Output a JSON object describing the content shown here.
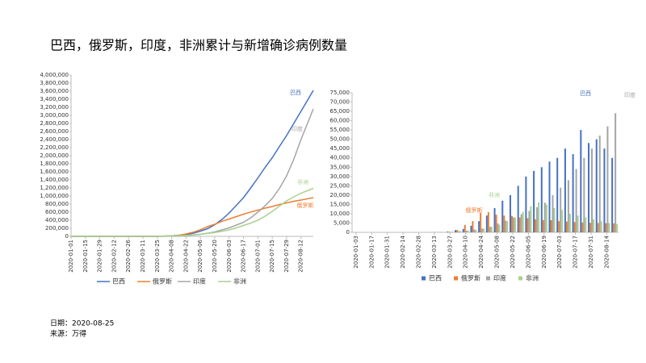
{
  "title": "巴西，俄罗斯，印度，非洲累计与新增确诊病例数量",
  "footer": {
    "date": "日期：2020-08-25",
    "source": "来源：万得"
  },
  "chart_data": [
    {
      "type": "line",
      "x": [
        "2020-01-01",
        "2020-01-08",
        "2020-01-15",
        "2020-01-22",
        "2020-01-29",
        "2020-02-05",
        "2020-02-12",
        "2020-02-19",
        "2020-02-26",
        "2020-03-04",
        "2020-03-11",
        "2020-03-18",
        "2020-03-25",
        "2020-04-01",
        "2020-04-08",
        "2020-04-15",
        "2020-04-22",
        "2020-04-29",
        "2020-05-06",
        "2020-05-13",
        "2020-05-20",
        "2020-05-27",
        "2020-06-03",
        "2020-06-10",
        "2020-06-17",
        "2020-06-24",
        "2020-07-01",
        "2020-07-08",
        "2020-07-15",
        "2020-07-22",
        "2020-07-29",
        "2020-08-05",
        "2020-08-12",
        "2020-08-19",
        "2020-08-24"
      ],
      "series": [
        {
          "name": "巴西",
          "color": "#4472c4",
          "values": [
            0,
            0,
            0,
            0,
            0,
            0,
            0,
            0,
            0,
            3,
            50,
            400,
            2500,
            7000,
            16000,
            28000,
            45000,
            78000,
            130000,
            190000,
            290000,
            420000,
            580000,
            770000,
            960000,
            1200000,
            1450000,
            1710000,
            1950000,
            2230000,
            2500000,
            2800000,
            3100000,
            3400000,
            3620000
          ]
        },
        {
          "name": "俄罗斯",
          "color": "#ed7d31",
          "values": [
            0,
            0,
            0,
            0,
            0,
            0,
            0,
            0,
            0,
            0,
            30,
            150,
            650,
            3000,
            10000,
            27000,
            60000,
            105000,
            165000,
            240000,
            300000,
            375000,
            430000,
            490000,
            550000,
            605000,
            650000,
            700000,
            740000,
            790000,
            830000,
            870000,
            900000,
            935000,
            960000
          ]
        },
        {
          "name": "印度",
          "color": "#a5a5a5",
          "values": [
            0,
            0,
            0,
            0,
            3,
            3,
            3,
            3,
            3,
            30,
            60,
            170,
            600,
            1800,
            5700,
            12000,
            20000,
            31000,
            50000,
            78000,
            110000,
            160000,
            210000,
            280000,
            350000,
            460000,
            600000,
            760000,
            940000,
            1190000,
            1500000,
            1910000,
            2400000,
            2840000,
            3160000
          ]
        },
        {
          "name": "非洲",
          "color": "#a9d18e",
          "values": [
            0,
            0,
            0,
            0,
            0,
            0,
            0,
            0,
            1,
            5,
            100,
            600,
            2500,
            6000,
            12000,
            18000,
            25000,
            38000,
            55000,
            72000,
            95000,
            125000,
            160000,
            210000,
            270000,
            330000,
            400000,
            500000,
            620000,
            750000,
            880000,
            980000,
            1070000,
            1140000,
            1190000
          ]
        }
      ],
      "ylim": [
        0,
        4000000
      ],
      "yticks": [
        0,
        {
          "value": 200000,
          "label": "200,000"
        },
        {
          "value": 400000,
          "label": "400,000"
        },
        {
          "value": 600000,
          "label": "600,000"
        },
        {
          "value": 800000,
          "label": "800,000"
        },
        {
          "value": 1000000,
          "label": "1,000,000"
        },
        {
          "value": 1200000,
          "label": "1,200,000"
        },
        {
          "value": 1400000,
          "label": "1,400,000"
        },
        {
          "value": 1600000,
          "label": "1,600,000"
        },
        {
          "value": 1800000,
          "label": "1,800,000"
        },
        {
          "value": 2000000,
          "label": "2,000,000"
        },
        {
          "value": 2200000,
          "label": "2,200,000"
        },
        {
          "value": 2400000,
          "label": "2,400,000"
        },
        {
          "value": 2600000,
          "label": "2,600,000"
        },
        {
          "value": 2800000,
          "label": "2,800,000"
        },
        {
          "value": 3000000,
          "label": "3,000,000"
        },
        {
          "value": 3200000,
          "label": "3,200,000"
        },
        {
          "value": 3400000,
          "label": "3,400,000"
        },
        {
          "value": 3600000,
          "label": "3,600,000"
        },
        {
          "value": 3800000,
          "label": "3,800,000"
        },
        {
          "value": 4000000,
          "label": "4,000,000"
        }
      ],
      "xticks": [
        "2020-01-01",
        "2020-01-15",
        "2020-01-29",
        "2020-02-12",
        "2020-02-26",
        "2020-03-11",
        "2020-03-25",
        "2020-04-08",
        "2020-04-22",
        "2020-05-06",
        "2020-05-20",
        "2020-06-03",
        "2020-06-17",
        "2020-07-01",
        "2020-07-15",
        "2020-07-29",
        "2020-08-12"
      ]
    },
    {
      "type": "bar",
      "x": [
        "2020-01-03",
        "2020-01-10",
        "2020-01-17",
        "2020-01-24",
        "2020-01-31",
        "2020-02-07",
        "2020-02-14",
        "2020-02-21",
        "2020-02-28",
        "2020-03-06",
        "2020-03-13",
        "2020-03-20",
        "2020-03-27",
        "2020-04-03",
        "2020-04-10",
        "2020-04-17",
        "2020-04-24",
        "2020-05-01",
        "2020-05-08",
        "2020-05-15",
        "2020-05-22",
        "2020-05-29",
        "2020-06-05",
        "2020-06-12",
        "2020-06-19",
        "2020-06-26",
        "2020-07-03",
        "2020-07-10",
        "2020-07-17",
        "2020-07-24",
        "2020-07-31",
        "2020-08-07",
        "2020-08-14",
        "2020-08-21"
      ],
      "series": [
        {
          "name": "巴西",
          "color": "#4472c4",
          "values": [
            0,
            0,
            0,
            0,
            0,
            0,
            0,
            0,
            0,
            0,
            20,
            100,
            400,
            1200,
            1800,
            3500,
            6000,
            9000,
            13000,
            17000,
            20000,
            25000,
            30000,
            33000,
            35000,
            38000,
            40000,
            45000,
            42000,
            55000,
            48000,
            50000,
            45000,
            40000
          ]
        },
        {
          "name": "俄罗斯",
          "color": "#ed7d31",
          "values": [
            0,
            0,
            0,
            0,
            0,
            0,
            0,
            0,
            0,
            0,
            10,
            60,
            300,
            1200,
            4000,
            6000,
            10500,
            10800,
            9500,
            9000,
            8800,
            8000,
            7600,
            7000,
            6600,
            6500,
            6000,
            5800,
            5500,
            5300,
            5100,
            5000,
            4900,
            4800
          ]
        },
        {
          "name": "印度",
          "color": "#a5a5a5",
          "values": [
            0,
            0,
            0,
            0,
            0,
            0,
            0,
            0,
            0,
            0,
            10,
            50,
            150,
            600,
            900,
            1500,
            2000,
            3000,
            4800,
            6300,
            8000,
            9800,
            11500,
            13500,
            16000,
            20000,
            24000,
            28000,
            34000,
            40000,
            45000,
            52000,
            57000,
            64000
          ]
        },
        {
          "name": "非洲",
          "color": "#a9d18e",
          "values": [
            0,
            0,
            0,
            0,
            0,
            0,
            0,
            0,
            0,
            0,
            20,
            120,
            400,
            700,
            1000,
            1300,
            2000,
            3000,
            4000,
            6000,
            8000,
            11000,
            14000,
            16000,
            15000,
            13000,
            12000,
            10000,
            9000,
            8000,
            7000,
            6000,
            5000,
            4500
          ]
        }
      ],
      "ylim": [
        0,
        75000
      ],
      "yticks": [
        0,
        {
          "value": 5000,
          "label": "5,000"
        },
        {
          "value": 10000,
          "label": "10,000"
        },
        {
          "value": 15000,
          "label": "15,000"
        },
        {
          "value": 20000,
          "label": "20,000"
        },
        {
          "value": 25000,
          "label": "25,000"
        },
        {
          "value": 30000,
          "label": "30,000"
        },
        {
          "value": 35000,
          "label": "35,000"
        },
        {
          "value": 40000,
          "label": "40,000"
        },
        {
          "value": 45000,
          "label": "45,000"
        },
        {
          "value": 50000,
          "label": "50,000"
        },
        {
          "value": 55000,
          "label": "55,000"
        },
        {
          "value": 60000,
          "label": "60,000"
        },
        {
          "value": 65000,
          "label": "65,000"
        },
        {
          "value": 70000,
          "label": "70,000"
        },
        {
          "value": 75000,
          "label": "75,000"
        }
      ],
      "xticks": [
        "2020-01-03",
        "2020-01-17",
        "2020-01-31",
        "2020-02-14",
        "2020-02-28",
        "2020-03-13",
        "2020-03-27",
        "2020-04-10",
        "2020-04-24",
        "2020-05-08",
        "2020-05-22",
        "2020-06-05",
        "2020-06-19",
        "2020-07-03",
        "2020-07-17",
        "2020-07-31",
        "2020-08-14"
      ]
    }
  ]
}
